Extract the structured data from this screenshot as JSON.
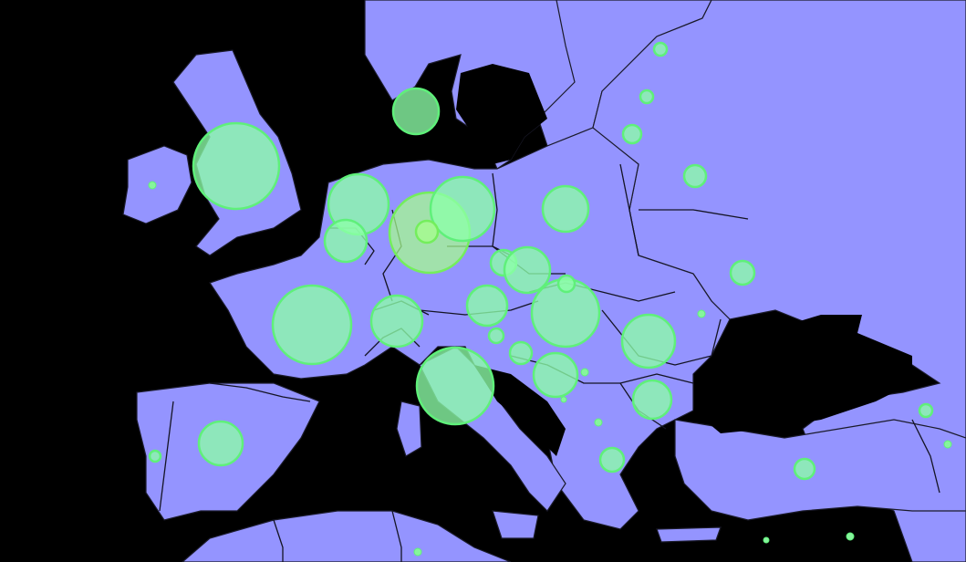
{
  "map": {
    "colors": {
      "sea": "#000000",
      "land": "#9494ff",
      "border": "#141424",
      "bubble_fill": "#8dffa8",
      "bubble_stroke": "#5ff07a",
      "bubble_highlight_fill": "#a6ff8a"
    },
    "legend": null,
    "bubbles": [
      {
        "id": "united-kingdom",
        "size": 47
      },
      {
        "id": "ireland",
        "size": 4
      },
      {
        "id": "denmark",
        "size": 25
      },
      {
        "id": "netherlands",
        "size": 33
      },
      {
        "id": "belgium",
        "size": 23
      },
      {
        "id": "germany",
        "size": 44,
        "highlight": true
      },
      {
        "id": "germany-east",
        "size": 35
      },
      {
        "id": "germany-center",
        "size": 12,
        "highlight": true
      },
      {
        "id": "france",
        "size": 43
      },
      {
        "id": "switzerland",
        "size": 28
      },
      {
        "id": "italy",
        "size": 42
      },
      {
        "id": "austria",
        "size": 22
      },
      {
        "id": "czechia",
        "size": 14
      },
      {
        "id": "czech-east",
        "size": 25
      },
      {
        "id": "poland",
        "size": 25
      },
      {
        "id": "hungary",
        "size": 37
      },
      {
        "id": "slovakia",
        "size": 9
      },
      {
        "id": "romania",
        "size": 29
      },
      {
        "id": "serbia",
        "size": 24
      },
      {
        "id": "croatia",
        "size": 12
      },
      {
        "id": "slovenia",
        "size": 8
      },
      {
        "id": "bulgaria",
        "size": 21
      },
      {
        "id": "spain",
        "size": 24
      },
      {
        "id": "portugal",
        "size": 6
      },
      {
        "id": "greece",
        "size": 13
      },
      {
        "id": "turkey",
        "size": 11
      },
      {
        "id": "ukraine",
        "size": 13
      },
      {
        "id": "belarus",
        "size": 12
      },
      {
        "id": "russia-1",
        "size": 10
      },
      {
        "id": "russia-2",
        "size": 7
      },
      {
        "id": "russia-3",
        "size": 7
      },
      {
        "id": "georgia",
        "size": 7
      },
      {
        "id": "moldova",
        "size": 4
      },
      {
        "id": "macedonia",
        "size": 4
      },
      {
        "id": "montenegro",
        "size": 3
      },
      {
        "id": "albania",
        "size": 4
      },
      {
        "id": "armenia",
        "size": 4
      },
      {
        "id": "cyprus",
        "size": 3
      },
      {
        "id": "israel",
        "size": 4
      },
      {
        "id": "malta",
        "size": 4
      }
    ]
  }
}
